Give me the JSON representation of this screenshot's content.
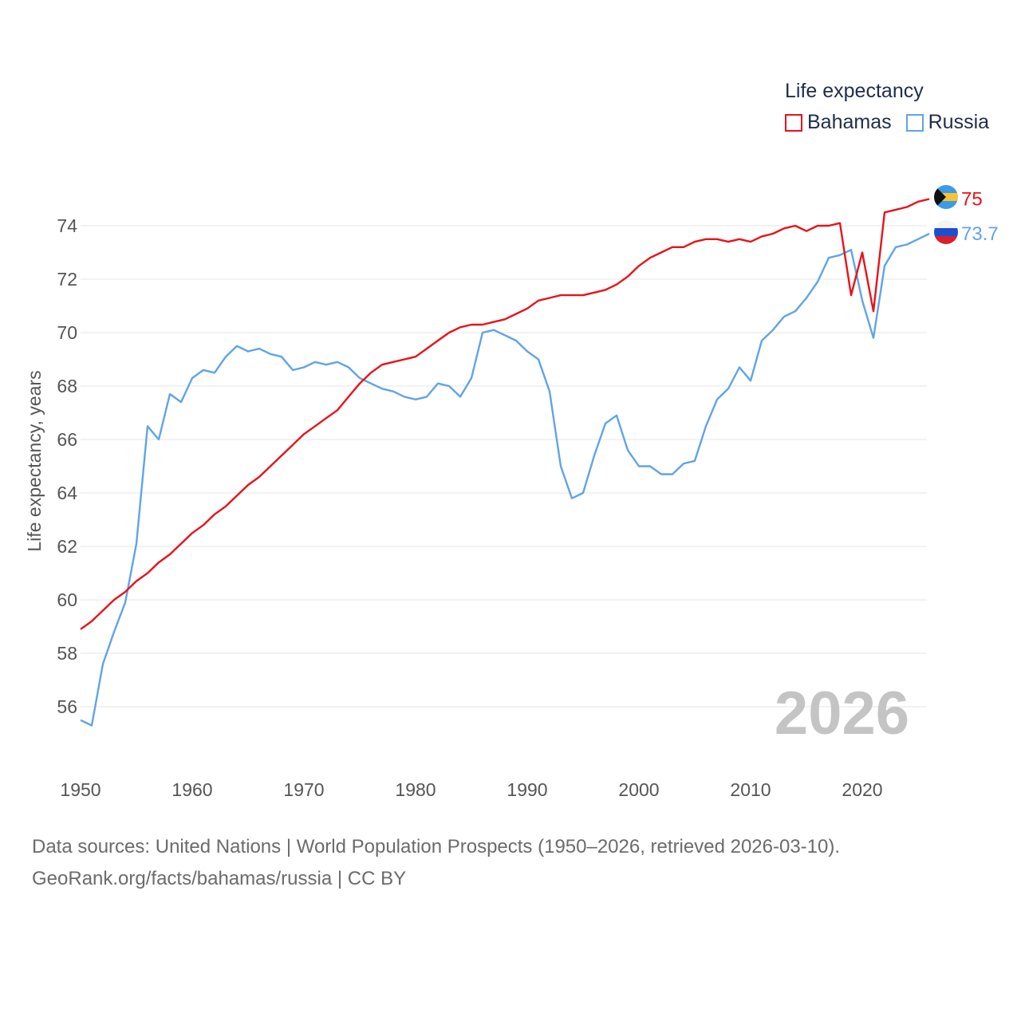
{
  "chart_data": {
    "type": "line",
    "ylabel": "Life expectancy, years",
    "xlim": [
      1950,
      2026
    ],
    "ylim": [
      54,
      76
    ],
    "x_ticks": [
      1950,
      1960,
      1970,
      1980,
      1990,
      2000,
      2010,
      2020
    ],
    "y_ticks": [
      56,
      58,
      60,
      62,
      64,
      66,
      68,
      70,
      72,
      74
    ],
    "x": [
      1950,
      1951,
      1952,
      1953,
      1954,
      1955,
      1956,
      1957,
      1958,
      1959,
      1960,
      1961,
      1962,
      1963,
      1964,
      1965,
      1966,
      1967,
      1968,
      1969,
      1970,
      1971,
      1972,
      1973,
      1974,
      1975,
      1976,
      1977,
      1978,
      1979,
      1980,
      1981,
      1982,
      1983,
      1984,
      1985,
      1986,
      1987,
      1988,
      1989,
      1990,
      1991,
      1992,
      1993,
      1994,
      1995,
      1996,
      1997,
      1998,
      1999,
      2000,
      2001,
      2002,
      2003,
      2004,
      2005,
      2006,
      2007,
      2008,
      2009,
      2010,
      2011,
      2012,
      2013,
      2014,
      2015,
      2016,
      2017,
      2018,
      2019,
      2020,
      2021,
      2022,
      2023,
      2024,
      2025,
      2026
    ],
    "series": [
      {
        "name": "Bahamas",
        "color": "#e8121a",
        "end_label": "75",
        "values": [
          58.9,
          59.2,
          59.6,
          60.0,
          60.3,
          60.7,
          61.0,
          61.4,
          61.7,
          62.1,
          62.5,
          62.8,
          63.2,
          63.5,
          63.9,
          64.3,
          64.6,
          65.0,
          65.4,
          65.8,
          66.2,
          66.5,
          66.8,
          67.1,
          67.6,
          68.1,
          68.5,
          68.8,
          68.9,
          69.0,
          69.1,
          69.4,
          69.7,
          70.0,
          70.2,
          70.3,
          70.3,
          70.4,
          70.5,
          70.7,
          70.9,
          71.2,
          71.3,
          71.4,
          71.4,
          71.4,
          71.5,
          71.6,
          71.8,
          72.1,
          72.5,
          72.8,
          73.0,
          73.2,
          73.2,
          73.4,
          73.5,
          73.5,
          73.4,
          73.5,
          73.4,
          73.6,
          73.7,
          73.9,
          74.0,
          73.8,
          74.0,
          74.0,
          74.1,
          71.4,
          73.0,
          70.8,
          74.5,
          74.6,
          74.7,
          74.9,
          75.0
        ]
      },
      {
        "name": "Russia",
        "color": "#60a4e6",
        "end_label": "73.7",
        "values": [
          55.5,
          55.3,
          57.6,
          58.8,
          59.9,
          62.1,
          66.5,
          66.0,
          67.7,
          67.4,
          68.3,
          68.6,
          68.5,
          69.1,
          69.5,
          69.3,
          69.4,
          69.2,
          69.1,
          68.6,
          68.7,
          68.9,
          68.8,
          68.9,
          68.7,
          68.3,
          68.1,
          67.9,
          67.8,
          67.6,
          67.5,
          67.6,
          68.1,
          68.0,
          67.6,
          68.3,
          70.0,
          70.1,
          69.9,
          69.7,
          69.3,
          69.0,
          67.8,
          65.0,
          63.8,
          64.0,
          65.4,
          66.6,
          66.9,
          65.6,
          65.0,
          65.0,
          64.7,
          64.7,
          65.1,
          65.2,
          66.5,
          67.5,
          67.9,
          68.7,
          68.2,
          69.7,
          70.1,
          70.6,
          70.8,
          71.3,
          71.9,
          72.8,
          72.9,
          73.1,
          71.2,
          69.8,
          72.5,
          73.2,
          73.3,
          73.5,
          73.7
        ]
      }
    ]
  },
  "legend": {
    "title": "Life expectancy",
    "items": [
      {
        "label": "Bahamas",
        "color": "#e8121a"
      },
      {
        "label": "Russia",
        "color": "#60a4e6"
      }
    ]
  },
  "year_watermark": "2026",
  "source_lines": [
    "Data sources: United Nations | World Population Prospects (1950–2026, retrieved 2026-03-10).",
    "GeoRank.org/facts/bahamas/russia | CC BY"
  ],
  "flags": [
    {
      "country": "Bahamas",
      "icon": "bahamas-flag-icon"
    },
    {
      "country": "Russia",
      "icon": "russia-flag-icon"
    }
  ]
}
